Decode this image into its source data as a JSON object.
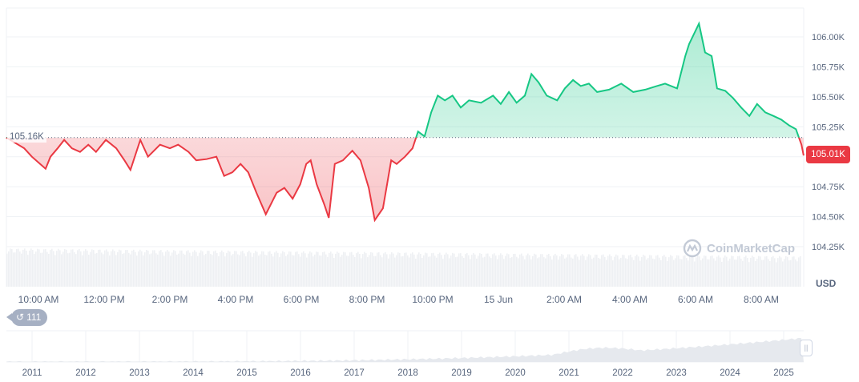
{
  "chart_data": {
    "type": "area",
    "baseline": 105.16,
    "baseline_label": "105.16K",
    "current_price_label": "105.01K",
    "currency": "USD",
    "colors": {
      "up": "#16c784",
      "down": "#ea3943"
    },
    "ylim": [
      104.1,
      106.2
    ],
    "yticks": [
      {
        "value": 106.0,
        "label": "106.00K"
      },
      {
        "value": 105.75,
        "label": "105.75K"
      },
      {
        "value": 105.5,
        "label": "105.50K"
      },
      {
        "value": 105.25,
        "label": "105.25K"
      },
      {
        "value": 105.0,
        "label": ""
      },
      {
        "value": 104.75,
        "label": "104.75K"
      },
      {
        "value": 104.5,
        "label": "104.50K"
      },
      {
        "value": 104.25,
        "label": "104.25K"
      }
    ],
    "xticks": [
      "10:00 AM",
      "12:00 PM",
      "2:00 PM",
      "4:00 PM",
      "6:00 PM",
      "8:00 PM",
      "10:00 PM",
      "15 Jun",
      "2:00 AM",
      "4:00 AM",
      "6:00 AM",
      "8:00 AM"
    ],
    "grid": true,
    "series": [
      {
        "x": [
          "09:01",
          "09:34",
          "09:48",
          "10:03",
          "10:13",
          "10:22",
          "10:35",
          "10:47",
          "11:01",
          "11:16",
          "11:31",
          "11:45",
          "12:03",
          "12:22",
          "12:37",
          "12:48",
          "13:06",
          "13:20",
          "13:42",
          "14:00",
          "14:15",
          "14:34",
          "14:48",
          "15:07",
          "15:25",
          "15:39",
          "15:54",
          "16:09",
          "16:23",
          "16:38",
          "16:55",
          "17:15",
          "17:29",
          "17:44",
          "17:58",
          "18:09",
          "18:17",
          "18:28",
          "18:42",
          "18:50",
          "19:01",
          "19:16",
          "19:33",
          "19:48",
          "20:03",
          "20:14",
          "20:29",
          "20:44",
          "20:54",
          "21:09",
          "21:23",
          "21:33",
          "21:45",
          "21:57",
          "22:09",
          "22:22",
          "22:36",
          "22:51",
          "23:06",
          "23:28",
          "23:50",
          "00:04",
          "00:19",
          "00:33",
          "00:48",
          "01:00",
          "01:13",
          "01:28",
          "01:47",
          "02:01",
          "02:16",
          "02:30",
          "02:45",
          "03:00",
          "03:22",
          "03:44",
          "04:06",
          "04:28",
          "04:49",
          "05:04",
          "05:26",
          "05:41",
          "05:48",
          "06:06",
          "06:17",
          "06:29",
          "06:39",
          "06:54",
          "07:08",
          "07:23",
          "07:38",
          "07:52",
          "08:07",
          "08:22",
          "08:36",
          "08:51",
          "09:03",
          "09:13",
          "09:17"
        ],
        "y": [
          105.16,
          105.07,
          105.0,
          104.94,
          104.9,
          105.0,
          105.07,
          105.14,
          105.07,
          105.04,
          105.1,
          105.04,
          105.14,
          105.07,
          104.97,
          104.89,
          105.14,
          105.0,
          105.1,
          105.07,
          105.1,
          105.04,
          104.97,
          104.98,
          105.0,
          104.84,
          104.87,
          104.94,
          104.87,
          104.7,
          104.52,
          104.7,
          104.74,
          104.65,
          104.77,
          104.94,
          104.97,
          104.77,
          104.6,
          104.49,
          104.94,
          104.97,
          105.05,
          104.97,
          104.74,
          104.47,
          104.57,
          104.97,
          104.94,
          105.0,
          105.07,
          105.21,
          105.17,
          105.37,
          105.51,
          105.47,
          105.51,
          105.41,
          105.47,
          105.45,
          105.51,
          105.44,
          105.54,
          105.45,
          105.51,
          105.69,
          105.62,
          105.51,
          105.47,
          105.57,
          105.64,
          105.59,
          105.61,
          105.54,
          105.56,
          105.61,
          105.54,
          105.56,
          105.59,
          105.61,
          105.57,
          105.84,
          105.94,
          106.11,
          105.87,
          105.84,
          105.57,
          105.55,
          105.49,
          105.41,
          105.34,
          105.44,
          105.37,
          105.34,
          105.31,
          105.26,
          105.23,
          105.1,
          105.01
        ]
      }
    ],
    "range_selector": {
      "years": [
        "2011",
        "2012",
        "2013",
        "2014",
        "2015",
        "2016",
        "2017",
        "2018",
        "2019",
        "2020",
        "2021",
        "2022",
        "2023",
        "2024",
        "2025"
      ],
      "badge_count": "111",
      "badge_icon": "history-icon"
    },
    "watermark": "CoinMarketCap"
  }
}
